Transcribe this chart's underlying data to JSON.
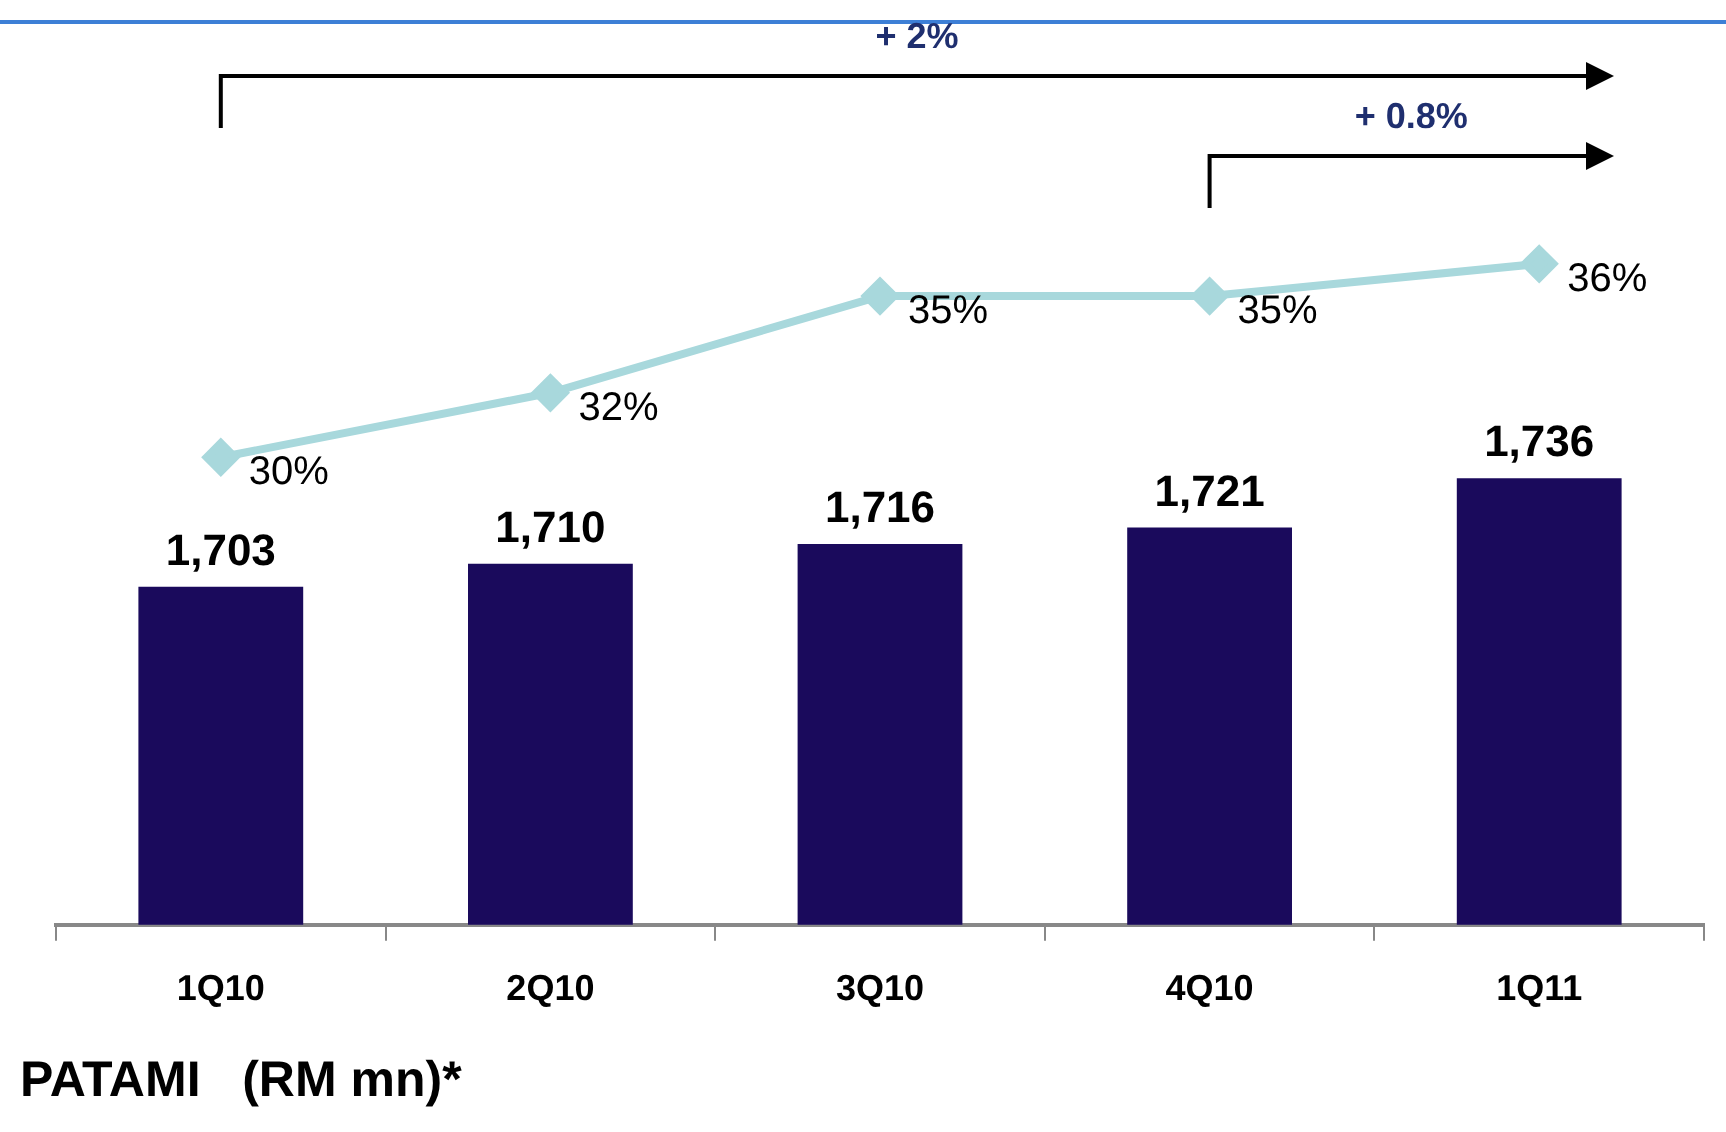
{
  "chart_data": {
    "type": "bar",
    "xlabel": "PATAMI   (RM mn)*",
    "categories": [
      "1Q10",
      "2Q10",
      "3Q10",
      "4Q10",
      "1Q11"
    ],
    "series": [
      {
        "color": "#1a0a5c",
        "values": [
          1703,
          1710,
          1716,
          1721,
          1736
        ],
        "value_labels": [
          "1,703",
          "1,710",
          "1,716",
          "1,721",
          "1,736"
        ]
      },
      {
        "type": "line",
        "axis": "y2",
        "color": "#a8d8dc",
        "values": [
          30,
          32,
          35,
          35,
          36
        ],
        "value_labels": [
          "30%",
          "32%",
          "35%",
          "35%",
          "36%"
        ]
      }
    ],
    "ylim": [
      1600,
      1875
    ],
    "y2lim": [
      15.5,
      43.5
    ],
    "grid": false,
    "legend": false,
    "marker": "diamond",
    "line_style": "solid",
    "annotations": [
      "+ 2%",
      "+ 0.8%"
    ]
  }
}
